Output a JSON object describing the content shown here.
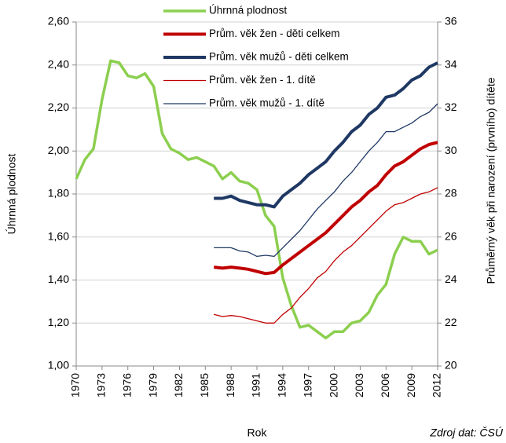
{
  "chart_data": {
    "type": "line",
    "x_label": "Rok",
    "y_label": "Úhrnná plodnost",
    "y2_label": "Průměrný věk při narození (prvního) dítěte",
    "source": "Zdroj dat: ČSÚ",
    "xlim": [
      1970,
      2012
    ],
    "xticks": [
      1970,
      1973,
      1976,
      1979,
      1982,
      1985,
      1988,
      1991,
      1994,
      1997,
      2000,
      2003,
      2006,
      2009,
      2012
    ],
    "ylim": [
      1.0,
      2.6
    ],
    "yticks": [
      {
        "value": 1.0,
        "label": "1,00"
      },
      {
        "value": 1.2,
        "label": "1,20"
      },
      {
        "value": 1.4,
        "label": "1,40"
      },
      {
        "value": 1.6,
        "label": "1,60"
      },
      {
        "value": 1.8,
        "label": "1,80"
      },
      {
        "value": 2.0,
        "label": "2,00"
      },
      {
        "value": 2.2,
        "label": "2,20"
      },
      {
        "value": 2.4,
        "label": "2,40"
      },
      {
        "value": 2.6,
        "label": "2,60"
      }
    ],
    "y2lim": [
      20,
      36
    ],
    "y2ticks": [
      20,
      22,
      24,
      26,
      28,
      30,
      32,
      34,
      36
    ],
    "grid": true,
    "series": [
      {
        "name": "Úhrnná plodnost",
        "color": "#8ccf4f",
        "width": 3.5,
        "axis": "y",
        "x": [
          1970,
          1971,
          1972,
          1973,
          1974,
          1975,
          1976,
          1977,
          1978,
          1979,
          1980,
          1981,
          1982,
          1983,
          1984,
          1985,
          1986,
          1987,
          1988,
          1989,
          1990,
          1991,
          1992,
          1993,
          1994,
          1995,
          1996,
          1997,
          1998,
          1999,
          2000,
          2001,
          2002,
          2003,
          2004,
          2005,
          2006,
          2007,
          2008,
          2009,
          2010,
          2011,
          2012
        ],
        "values": [
          1.87,
          1.96,
          2.01,
          2.24,
          2.42,
          2.41,
          2.35,
          2.34,
          2.36,
          2.3,
          2.08,
          2.01,
          1.99,
          1.96,
          1.97,
          1.95,
          1.93,
          1.87,
          1.9,
          1.86,
          1.85,
          1.82,
          1.7,
          1.65,
          1.41,
          1.28,
          1.18,
          1.19,
          1.16,
          1.13,
          1.16,
          1.16,
          1.2,
          1.21,
          1.25,
          1.33,
          1.38,
          1.52,
          1.6,
          1.58,
          1.58,
          1.52,
          1.54
        ]
      },
      {
        "name": "Prům. věk žen - děti celkem",
        "color": "#c00000",
        "width": 4,
        "axis": "y2",
        "x": [
          1986,
          1987,
          1988,
          1989,
          1990,
          1991,
          1992,
          1993,
          1994,
          1995,
          1996,
          1997,
          1998,
          1999,
          2000,
          2001,
          2002,
          2003,
          2004,
          2005,
          2006,
          2007,
          2008,
          2009,
          2010,
          2011,
          2012
        ],
        "values": [
          24.6,
          24.55,
          24.6,
          24.55,
          24.5,
          24.4,
          24.3,
          24.35,
          24.7,
          25.0,
          25.3,
          25.6,
          25.9,
          26.2,
          26.6,
          27.0,
          27.4,
          27.7,
          28.1,
          28.4,
          28.9,
          29.3,
          29.5,
          29.8,
          30.1,
          30.3,
          30.4
        ]
      },
      {
        "name": "Prům. věk mužů - děti celkem",
        "color": "#1f3864",
        "width": 4,
        "axis": "y2",
        "x": [
          1986,
          1987,
          1988,
          1989,
          1990,
          1991,
          1992,
          1993,
          1994,
          1995,
          1996,
          1997,
          1998,
          1999,
          2000,
          2001,
          2002,
          2003,
          2004,
          2005,
          2006,
          2007,
          2008,
          2009,
          2010,
          2011,
          2012
        ],
        "values": [
          27.8,
          27.8,
          27.9,
          27.7,
          27.6,
          27.5,
          27.5,
          27.4,
          27.9,
          28.2,
          28.5,
          28.9,
          29.2,
          29.5,
          30.0,
          30.4,
          30.9,
          31.2,
          31.7,
          32.0,
          32.5,
          32.6,
          32.9,
          33.3,
          33.5,
          33.9,
          34.1
        ]
      },
      {
        "name": "Prům. věk žen - 1. dítě",
        "color": "#c00000",
        "width": 1.3,
        "axis": "y2",
        "x": [
          1986,
          1987,
          1988,
          1989,
          1990,
          1991,
          1992,
          1993,
          1994,
          1995,
          1996,
          1997,
          1998,
          1999,
          2000,
          2001,
          2002,
          2003,
          2004,
          2005,
          2006,
          2007,
          2008,
          2009,
          2010,
          2011,
          2012
        ],
        "values": [
          22.4,
          22.3,
          22.35,
          22.3,
          22.2,
          22.1,
          22.0,
          22.0,
          22.4,
          22.7,
          23.2,
          23.6,
          24.1,
          24.4,
          24.9,
          25.3,
          25.6,
          26.0,
          26.4,
          26.8,
          27.2,
          27.5,
          27.6,
          27.8,
          28.0,
          28.1,
          28.3
        ]
      },
      {
        "name": "Prům. věk mužů - 1. dítě",
        "color": "#1f3864",
        "width": 1.3,
        "axis": "y2",
        "x": [
          1986,
          1987,
          1988,
          1989,
          1990,
          1991,
          1992,
          1993,
          1994,
          1995,
          1996,
          1997,
          1998,
          1999,
          2000,
          2001,
          2002,
          2003,
          2004,
          2005,
          2006,
          2007,
          2008,
          2009,
          2010,
          2011,
          2012
        ],
        "values": [
          25.5,
          25.5,
          25.5,
          25.35,
          25.3,
          25.1,
          25.15,
          25.1,
          25.5,
          25.9,
          26.3,
          26.8,
          27.3,
          27.7,
          28.1,
          28.6,
          29.0,
          29.5,
          30.0,
          30.4,
          30.9,
          30.9,
          31.1,
          31.3,
          31.6,
          31.8,
          32.2
        ]
      }
    ]
  }
}
